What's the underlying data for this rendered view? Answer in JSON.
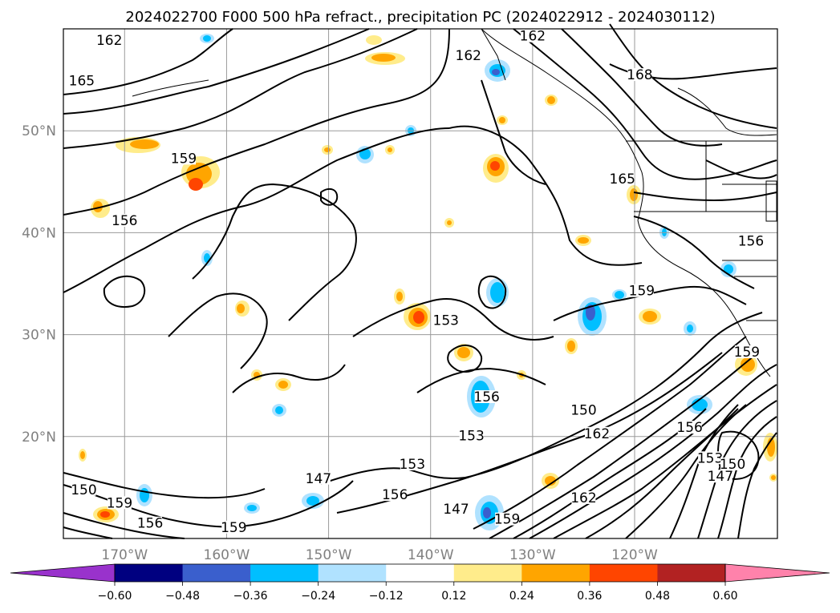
{
  "chart_data": {
    "type": "contour-map",
    "title": "2024022700 F000 500 hPa refract., precipitation PC (2024022912 - 2024030112)",
    "x_ticks": [
      "170°W",
      "160°W",
      "150°W",
      "140°W",
      "130°W",
      "120°W"
    ],
    "x_tick_values": [
      -170,
      -160,
      -150,
      -140,
      -130,
      -120
    ],
    "y_ticks": [
      "50°N",
      "40°N",
      "30°N",
      "20°N"
    ],
    "y_tick_values": [
      50,
      40,
      30,
      20
    ],
    "lon_range": [
      -176,
      -106
    ],
    "lat_range": [
      10,
      60
    ],
    "gridlines": true,
    "contour_labels": [
      {
        "text": "162",
        "lon": -171.5,
        "lat": 58.6
      },
      {
        "text": "165",
        "lon": -174.2,
        "lat": 54.6
      },
      {
        "text": "159",
        "lon": -164.2,
        "lat": 47.0
      },
      {
        "text": "156",
        "lon": -170.0,
        "lat": 40.9
      },
      {
        "text": "150",
        "lon": -174.0,
        "lat": 14.5
      },
      {
        "text": "159",
        "lon": -170.5,
        "lat": 13.2
      },
      {
        "text": "156",
        "lon": -167.5,
        "lat": 11.2
      },
      {
        "text": "159",
        "lon": -159.3,
        "lat": 10.8
      },
      {
        "text": "147",
        "lon": -151.0,
        "lat": 15.6
      },
      {
        "text": "153",
        "lon": -141.8,
        "lat": 17.0
      },
      {
        "text": "156",
        "lon": -143.5,
        "lat": 14.0
      },
      {
        "text": "153",
        "lon": -136.0,
        "lat": 19.8
      },
      {
        "text": "156",
        "lon": -134.5,
        "lat": 23.6
      },
      {
        "text": "150",
        "lon": -125.0,
        "lat": 22.3
      },
      {
        "text": "162",
        "lon": -123.7,
        "lat": 20.0
      },
      {
        "text": "156",
        "lon": -114.6,
        "lat": 20.6
      },
      {
        "text": "153",
        "lon": -112.6,
        "lat": 17.6
      },
      {
        "text": "150",
        "lon": -110.4,
        "lat": 17.0
      },
      {
        "text": "147",
        "lon": -111.6,
        "lat": 15.8
      },
      {
        "text": "162",
        "lon": -125.0,
        "lat": 13.7
      },
      {
        "text": "147",
        "lon": -137.5,
        "lat": 12.6
      },
      {
        "text": "159",
        "lon": -132.5,
        "lat": 11.6
      },
      {
        "text": "153",
        "lon": -138.5,
        "lat": 31.1
      },
      {
        "text": "159",
        "lon": -119.3,
        "lat": 34.0
      },
      {
        "text": "156",
        "lon": -108.6,
        "lat": 38.9
      },
      {
        "text": "165",
        "lon": -121.2,
        "lat": 45.0
      },
      {
        "text": "168",
        "lon": -119.5,
        "lat": 55.2
      },
      {
        "text": "162",
        "lon": -136.3,
        "lat": 57.1
      },
      {
        "text": "162",
        "lon": -130.0,
        "lat": 59.0
      },
      {
        "text": "159",
        "lon": -109.0,
        "lat": 28.0
      }
    ],
    "colorbar": {
      "levels": [
        -0.6,
        -0.48,
        -0.36,
        -0.24,
        -0.12,
        0.12,
        0.24,
        0.36,
        0.48,
        0.6
      ],
      "labels": [
        "−0.60",
        "−0.48",
        "−0.36",
        "−0.24",
        "−0.12",
        "0.12",
        "0.24",
        "0.36",
        "0.48",
        "0.60"
      ],
      "colors": [
        "#9932cc",
        "#000080",
        "#3a5fcd",
        "#00bfff",
        "#b0e2ff",
        "#ffffff",
        "#ffec8b",
        "#ffa500",
        "#ff4500",
        "#b22222",
        "#ff82ab"
      ],
      "extend": "both"
    }
  }
}
